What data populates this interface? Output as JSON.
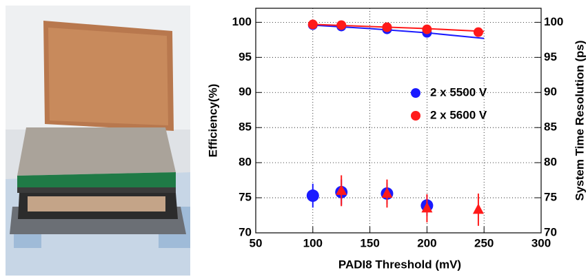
{
  "chart_data": {
    "type": "scatter",
    "x_label": "PADI8 Threshold (mV)",
    "y_label": "Efficiency(%)",
    "y2_label": "System Time Resolution (ps)",
    "xlim": [
      50,
      300
    ],
    "xticks": [
      50,
      100,
      150,
      200,
      250,
      300
    ],
    "ylim": [
      70,
      102
    ],
    "yticks": [
      70,
      75,
      80,
      85,
      90,
      95,
      100
    ],
    "y2lim": [
      70,
      102
    ],
    "y2ticks": [
      70,
      75,
      80,
      85,
      90,
      95,
      100
    ],
    "grid": true,
    "series": [
      {
        "name": "2 x 5500 V",
        "color": "#1a1aff",
        "marker": "circle",
        "x": [
          100,
          125,
          165,
          200
        ],
        "values": [
          99.6,
          99.4,
          99.0,
          98.5
        ]
      },
      {
        "name": "2 x 5600 V",
        "color": "#ff1a1a",
        "marker": "circle",
        "x": [
          100,
          125,
          165,
          200,
          245
        ],
        "values": [
          99.7,
          99.6,
          99.3,
          99.0,
          98.6
        ]
      },
      {
        "color": "#1a1aff",
        "marker": "circle",
        "axis": "y2",
        "x": [
          100,
          125,
          165,
          200
        ],
        "values": [
          75.3,
          75.8,
          75.6,
          73.9
        ],
        "errors": [
          1.7,
          1.8,
          1.5,
          1.5
        ]
      },
      {
        "color": "#ff1a1a",
        "marker": "triangle",
        "axis": "y2",
        "x": [
          125,
          165,
          200,
          245
        ],
        "values": [
          76.0,
          75.6,
          73.5,
          73.3
        ],
        "errors": [
          2.2,
          2.0,
          2.0,
          2.3
        ]
      }
    ],
    "fits": [
      {
        "color": "#1a1aff",
        "x": [
          100,
          150,
          200,
          250
        ],
        "values": [
          99.6,
          99.1,
          98.5,
          97.7
        ]
      },
      {
        "color": "#ff1a1a",
        "x": [
          100,
          150,
          200,
          250
        ],
        "values": [
          99.7,
          99.4,
          99.1,
          98.7
        ]
      }
    ]
  }
}
